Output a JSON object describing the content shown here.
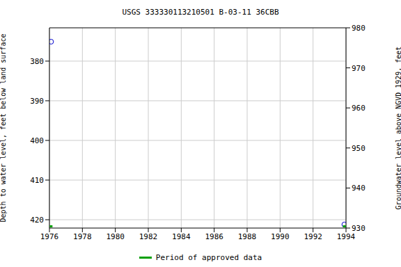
{
  "chart_data": {
    "type": "scatter",
    "title": "USGS 333330113210501 B-03-11 36CBB",
    "y_label": "Depth to water level, feet below land surface",
    "y2_label": "Groundwater level above NGVD 1929, feet",
    "x": [
      1976.1,
      1993.9
    ],
    "series": [
      {
        "color": "#0000cc",
        "marker": "circle",
        "values": [
          375.1,
          421.2
        ]
      }
    ],
    "approved": {
      "name": "Period of approved data",
      "color": "#00a000",
      "x": [
        1976.1,
        1993.9
      ]
    },
    "xlim": [
      1976,
      1994
    ],
    "xticks": [
      1976,
      1978,
      1980,
      1982,
      1984,
      1986,
      1988,
      1990,
      1992,
      1994
    ],
    "ylim": [
      371.6,
      422.1
    ],
    "yticks": [
      380,
      390,
      400,
      410,
      420
    ],
    "y2lim": [
      930,
      980
    ],
    "y2ticks": [
      930,
      940,
      950,
      960,
      970,
      980
    ],
    "grid": true
  }
}
